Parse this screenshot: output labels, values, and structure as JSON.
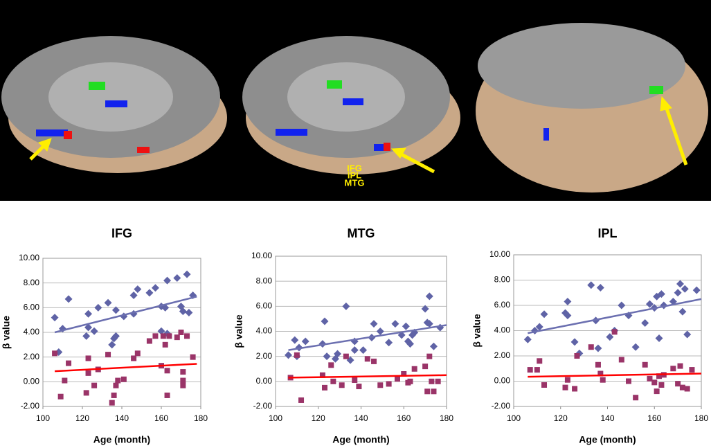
{
  "brain_figure": {
    "labels": [
      "IFG",
      "IPL",
      "MTG"
    ]
  },
  "chart_data": [
    {
      "type": "scatter",
      "title": "IFG",
      "x_label": "Age (month)",
      "y_label": "β value",
      "xlim": [
        100,
        180
      ],
      "xticks": [
        100,
        120,
        140,
        160,
        180
      ],
      "ylim": [
        -2,
        10
      ],
      "yticks": [
        {
          "value": 10,
          "label": "10.00"
        },
        {
          "value": 8,
          "label": "8.00"
        },
        {
          "value": 6,
          "label": "6.00"
        },
        {
          "value": 4,
          "label": "4.00"
        },
        {
          "value": 2,
          "label": "2.00"
        },
        {
          "value": 0,
          "label": "0.00"
        },
        {
          "value": -2,
          "label": "-2.00"
        }
      ],
      "grid": true,
      "series": [
        {
          "color": "#5f63a6",
          "marker": "diamond",
          "x": [
            106,
            108,
            110,
            113,
            122,
            123,
            123,
            126,
            128,
            133,
            135,
            136,
            137,
            137,
            141,
            146,
            148,
            154,
            157,
            160,
            162,
            163,
            168,
            170,
            171,
            173,
            174,
            176,
            163,
            160,
            146
          ],
          "values": [
            5.2,
            2.4,
            4.3,
            6.7,
            3.7,
            5.5,
            4.4,
            4.1,
            6.0,
            6.4,
            3.0,
            3.5,
            3.7,
            5.8,
            5.3,
            7.0,
            7.5,
            7.2,
            7.6,
            6.1,
            6.0,
            8.2,
            8.4,
            6.1,
            5.7,
            8.7,
            5.6,
            7.0,
            3.9,
            4.1,
            5.5
          ]
        },
        {
          "color": "#9a3468",
          "marker": "square",
          "x": [
            106,
            109,
            111,
            113,
            122,
            123,
            123,
            126,
            128,
            133,
            135,
            136,
            137,
            138,
            141,
            146,
            148,
            154,
            157,
            160,
            161,
            162,
            163,
            163,
            164,
            168,
            170,
            171,
            171,
            171,
            173,
            176
          ],
          "values": [
            2.3,
            -1.2,
            0.1,
            1.5,
            -0.9,
            1.9,
            0.7,
            -0.3,
            1.0,
            2.2,
            -1.7,
            -1.1,
            -0.3,
            0.1,
            0.2,
            1.9,
            2.3,
            3.3,
            3.7,
            1.3,
            3.7,
            3.0,
            0.9,
            -1.1,
            3.7,
            3.6,
            4.0,
            0.8,
            0.1,
            -0.3,
            3.7,
            2.0
          ]
        }
      ],
      "trendlines": [
        {
          "color": "#6b6fb0",
          "x": [
            106,
            178
          ],
          "values": [
            4.0,
            6.9
          ]
        },
        {
          "color": "#ff0000",
          "x": [
            106,
            178
          ],
          "values": [
            0.85,
            1.45
          ]
        }
      ]
    },
    {
      "type": "scatter",
      "title": "MTG",
      "x_label": "Age (month)",
      "y_label": "β value",
      "xlim": [
        100,
        180
      ],
      "xticks": [
        100,
        120,
        140,
        160,
        180
      ],
      "ylim": [
        -2,
        10
      ],
      "yticks": [
        {
          "value": 10,
          "label": "10.00"
        },
        {
          "value": 8,
          "label": "8.00"
        },
        {
          "value": 6,
          "label": "6.00"
        },
        {
          "value": 4,
          "label": "4.00"
        },
        {
          "value": 2,
          "label": "2.00"
        },
        {
          "value": 0,
          "label": "0.00"
        },
        {
          "value": -2,
          "label": "-2.00"
        }
      ],
      "grid": true,
      "series": [
        {
          "color": "#5f63a6",
          "marker": "diamond",
          "x": [
            106,
            109,
            110,
            111,
            114,
            122,
            123,
            124,
            128,
            129,
            133,
            135,
            137,
            137,
            141,
            145,
            146,
            149,
            153,
            156,
            159,
            161,
            162,
            163,
            164,
            165,
            170,
            171,
            172,
            172,
            174,
            177
          ],
          "values": [
            2.1,
            3.3,
            2.0,
            2.7,
            3.2,
            3.0,
            4.8,
            2.0,
            1.8,
            2.2,
            6.0,
            1.7,
            3.2,
            2.5,
            2.5,
            3.5,
            4.6,
            4.0,
            3.1,
            4.6,
            3.7,
            4.4,
            3.2,
            3.0,
            3.7,
            3.9,
            5.8,
            4.7,
            6.8,
            4.6,
            2.8,
            4.3
          ]
        },
        {
          "color": "#9a3468",
          "marker": "square",
          "x": [
            107,
            110,
            112,
            122,
            123,
            126,
            127,
            131,
            133,
            137,
            139,
            143,
            146,
            149,
            153,
            157,
            160,
            162,
            163,
            165,
            170,
            171,
            172,
            173,
            174,
            176
          ],
          "values": [
            0.3,
            2.1,
            -1.5,
            0.5,
            -0.5,
            1.3,
            0.0,
            -0.3,
            2.0,
            0.1,
            -0.4,
            1.8,
            1.6,
            -0.3,
            -0.2,
            0.2,
            0.6,
            -0.1,
            0.0,
            1.0,
            1.2,
            -0.8,
            2.0,
            0.0,
            -0.8,
            0.0
          ]
        }
      ],
      "trendlines": [
        {
          "color": "#6b6fb0",
          "x": [
            106,
            180
          ],
          "values": [
            2.5,
            4.5
          ]
        },
        {
          "color": "#ff0000",
          "x": [
            106,
            180
          ],
          "values": [
            0.3,
            0.5
          ]
        }
      ]
    },
    {
      "type": "scatter",
      "title": "IPL",
      "x_label": "Age (month)",
      "y_label": "β value",
      "xlim": [
        100,
        180
      ],
      "xticks": [
        100,
        120,
        140,
        160,
        180
      ],
      "ylim": [
        -2,
        10
      ],
      "yticks": [
        {
          "value": 10,
          "label": "10.00"
        },
        {
          "value": 8,
          "label": "8.00"
        },
        {
          "value": 6,
          "label": "6.00"
        },
        {
          "value": 4,
          "label": "4.00"
        },
        {
          "value": 2,
          "label": "2.00"
        },
        {
          "value": 0,
          "label": "0.00"
        },
        {
          "value": -2,
          "label": "-2.00"
        }
      ],
      "grid": true,
      "series": [
        {
          "color": "#5f63a6",
          "marker": "diamond",
          "x": [
            106,
            109,
            111,
            113,
            122,
            123,
            123,
            126,
            128,
            133,
            135,
            136,
            137,
            141,
            143,
            146,
            149,
            152,
            156,
            158,
            160,
            161,
            162,
            163,
            164,
            168,
            170,
            171,
            172,
            173,
            174,
            178
          ],
          "values": [
            3.3,
            4.0,
            4.3,
            5.3,
            5.4,
            5.2,
            6.3,
            3.1,
            2.2,
            7.6,
            4.8,
            2.6,
            7.4,
            3.5,
            4.0,
            6.0,
            5.2,
            2.7,
            4.6,
            6.1,
            5.8,
            6.7,
            3.4,
            6.9,
            6.0,
            6.3,
            7.0,
            7.7,
            5.5,
            7.3,
            3.7,
            7.2
          ]
        },
        {
          "color": "#9a3468",
          "marker": "square",
          "x": [
            107,
            110,
            111,
            113,
            122,
            123,
            126,
            127,
            133,
            136,
            137,
            138,
            143,
            146,
            149,
            152,
            156,
            158,
            160,
            161,
            162,
            163,
            164,
            168,
            170,
            171,
            172,
            174,
            176
          ],
          "values": [
            0.9,
            0.9,
            1.6,
            -0.3,
            -0.5,
            0.1,
            -0.6,
            2.0,
            2.7,
            1.3,
            0.6,
            0.1,
            3.9,
            1.7,
            0.0,
            -1.3,
            1.3,
            0.2,
            -0.1,
            -0.8,
            0.4,
            -0.3,
            0.5,
            1.0,
            -0.2,
            1.2,
            -0.5,
            -0.6,
            0.9
          ]
        }
      ],
      "trendlines": [
        {
          "color": "#6b6fb0",
          "x": [
            106,
            180
          ],
          "values": [
            3.8,
            6.5
          ]
        },
        {
          "color": "#ff0000",
          "x": [
            106,
            180
          ],
          "values": [
            0.35,
            0.6
          ]
        }
      ]
    }
  ]
}
